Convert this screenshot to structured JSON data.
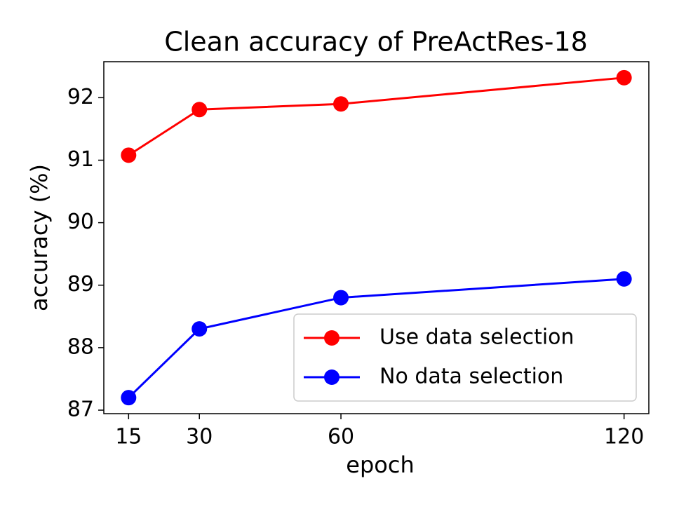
{
  "chart_data": {
    "type": "line",
    "title": "Clean accuracy of PreActRes-18",
    "x_label": "epoch",
    "y_label": "accuracy (%)",
    "x": [
      15,
      30,
      60,
      120
    ],
    "series": [
      {
        "name": "Use data selection",
        "color": "#ff0000",
        "values": [
          91.08,
          91.81,
          91.9,
          92.32
        ]
      },
      {
        "name": "No data selection",
        "color": "#0000ff",
        "values": [
          87.2,
          88.3,
          88.8,
          89.1
        ]
      }
    ],
    "xlim": [
      9.75,
      125.25
    ],
    "xticks": [
      15,
      30,
      60,
      120
    ],
    "ylim": [
      86.944,
      92.576
    ],
    "yticks": [
      87,
      88,
      89,
      90,
      91,
      92
    ],
    "grid": false,
    "legend": "lower right"
  }
}
